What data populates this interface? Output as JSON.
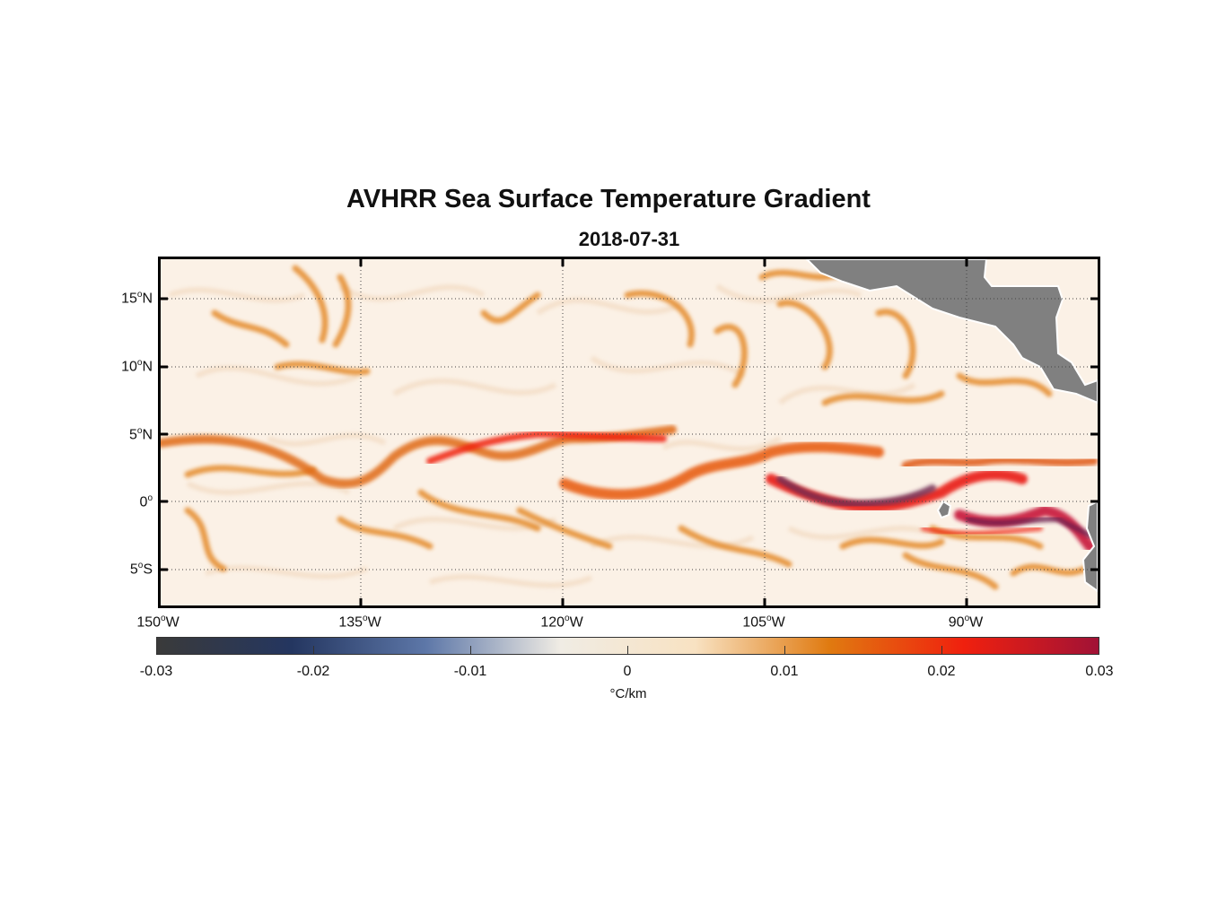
{
  "title": "AVHRR Sea Surface Temperature Gradient",
  "subtitle": "2018-07-31",
  "map": {
    "lat_labels": [
      {
        "deg": "15",
        "hem": "N"
      },
      {
        "deg": "10",
        "hem": "N"
      },
      {
        "deg": "5",
        "hem": "N"
      },
      {
        "deg": "0",
        "hem": ""
      },
      {
        "deg": "5",
        "hem": "S"
      }
    ],
    "lon_labels": [
      {
        "deg": "150",
        "hem": "W"
      },
      {
        "deg": "135",
        "hem": "W"
      },
      {
        "deg": "120",
        "hem": "W"
      },
      {
        "deg": "105",
        "hem": "W"
      },
      {
        "deg": "90",
        "hem": "W"
      }
    ],
    "land_color": "#808080",
    "ocean_background": "#fbf1e6"
  },
  "colorbar": {
    "ticks": [
      "-0.03",
      "-0.02",
      "-0.01",
      "0",
      "0.01",
      "0.02",
      "0.03"
    ],
    "unit": "°C/km",
    "colors": [
      "#3a3a3a",
      "#243660",
      "#5d77a8",
      "#f0ece4",
      "#f8e2c2",
      "#e07a10",
      "#f0200e",
      "#a11236"
    ]
  }
}
